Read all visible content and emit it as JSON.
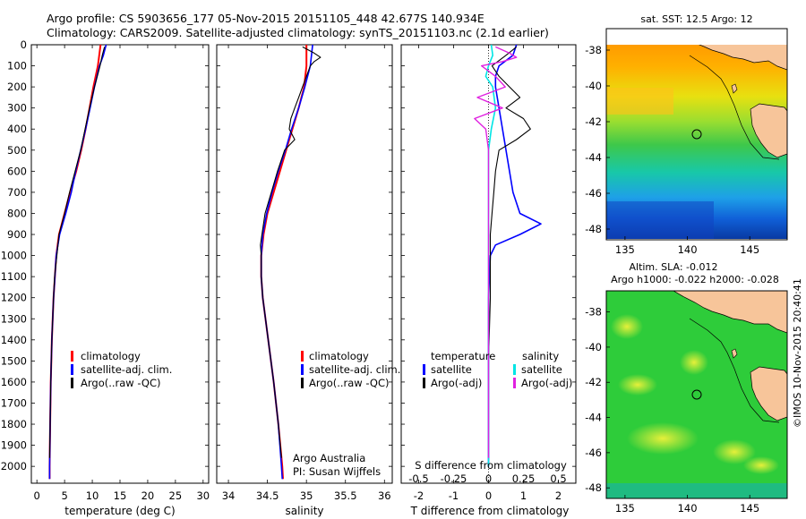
{
  "title_line1": "Argo profile: CS 5903656_177 05-Nov-2015 20151105_448 42.677S 140.934E",
  "title_line2": "Climatology: CARS2009. Satellite-adjusted climatology: synTS_20151103.nc (2.1d earlier)",
  "colors": {
    "clim": "#ff0000",
    "sat": "#0000ff",
    "argo": "#000000",
    "sat_s": "#00e5e5",
    "argo_s": "#e020e0",
    "land": "#f7c59a"
  },
  "chart_data": [
    {
      "type": "line",
      "id": "temperature",
      "xlabel": "temperature (deg C)",
      "xlim": [
        -1,
        31
      ],
      "ylim": [
        2080,
        0
      ],
      "x_ticks": [
        0,
        5,
        10,
        15,
        20,
        25,
        30
      ],
      "y_ticks": [
        0,
        100,
        200,
        300,
        400,
        500,
        600,
        700,
        800,
        900,
        1000,
        1100,
        1200,
        1300,
        1400,
        1500,
        1600,
        1700,
        1800,
        1900,
        2000
      ],
      "legend": [
        "climatology",
        "satellite-adj. clim.",
        "Argo(..raw -QC)"
      ],
      "series": [
        {
          "name": "climatology",
          "depth": [
            0,
            100,
            200,
            300,
            400,
            500,
            600,
            700,
            800,
            900,
            1000,
            1200,
            1400,
            1600,
            1800,
            2000,
            2060
          ],
          "values": [
            11.5,
            11.0,
            10.2,
            9.5,
            8.8,
            8.0,
            7.1,
            6.0,
            5.0,
            4.0,
            3.5,
            3.0,
            2.7,
            2.5,
            2.4,
            2.3,
            2.3
          ]
        },
        {
          "name": "satellite-adj. clim.",
          "depth": [
            0,
            50,
            100,
            200,
            300,
            400,
            500,
            600,
            700,
            800,
            900,
            1000,
            1200,
            1400,
            1600,
            1800,
            2000,
            2060
          ],
          "values": [
            12.5,
            12.0,
            11.3,
            10.4,
            9.6,
            8.8,
            7.9,
            7.0,
            6.2,
            5.2,
            4.1,
            3.5,
            3.0,
            2.7,
            2.5,
            2.4,
            2.3,
            2.3
          ]
        },
        {
          "name": "Argo(..raw -QC)",
          "depth": [
            10,
            50,
            100,
            150,
            200,
            300,
            400,
            500,
            600,
            700,
            800,
            900,
            1000,
            1100,
            1200,
            1400,
            1600,
            1800,
            1960
          ],
          "values": [
            12.2,
            11.8,
            11.4,
            10.9,
            10.4,
            9.5,
            8.7,
            7.9,
            6.9,
            5.9,
            5.0,
            4.0,
            3.6,
            3.2,
            3.0,
            2.7,
            2.5,
            2.4,
            2.3
          ]
        }
      ]
    },
    {
      "type": "line",
      "id": "salinity",
      "xlabel": "salinity",
      "xlim": [
        33.85,
        36.1
      ],
      "ylim": [
        2080,
        0
      ],
      "x_ticks": [
        34,
        34.5,
        35,
        35.5,
        36
      ],
      "legend": [
        "climatology",
        "satellite-adj. clim.",
        "Argo(..raw -QC)"
      ],
      "annotation": [
        "Argo Australia",
        "PI: Susan Wijffels"
      ],
      "series": [
        {
          "name": "climatology",
          "depth": [
            0,
            100,
            200,
            300,
            400,
            500,
            600,
            700,
            800,
            900,
            1000,
            1100,
            1200,
            1400,
            1600,
            1800,
            2000,
            2060
          ],
          "values": [
            35.0,
            35.0,
            34.97,
            34.9,
            34.82,
            34.74,
            34.66,
            34.58,
            34.5,
            34.45,
            34.42,
            34.42,
            34.44,
            34.51,
            34.58,
            34.64,
            34.69,
            34.7
          ]
        },
        {
          "name": "satellite-adj. clim.",
          "depth": [
            0,
            100,
            200,
            300,
            400,
            500,
            600,
            700,
            800,
            900,
            1000,
            1100,
            1200,
            1400,
            1600,
            1800,
            2000,
            2060
          ],
          "values": [
            35.08,
            35.05,
            34.98,
            34.9,
            34.81,
            34.73,
            34.64,
            34.56,
            34.49,
            34.44,
            34.42,
            34.42,
            34.44,
            34.51,
            34.58,
            34.64,
            34.68,
            34.69
          ]
        },
        {
          "name": "Argo(..raw -QC)",
          "depth": [
            10,
            40,
            60,
            80,
            100,
            150,
            200,
            250,
            300,
            350,
            400,
            450,
            500,
            600,
            700,
            800,
            900,
            950,
            1000,
            1100,
            1200,
            1400,
            1600,
            1800,
            1960
          ],
          "values": [
            34.95,
            35.1,
            35.18,
            35.1,
            35.05,
            35.0,
            34.95,
            34.9,
            34.85,
            34.8,
            34.78,
            34.85,
            34.72,
            34.63,
            34.55,
            34.47,
            34.43,
            34.41,
            34.42,
            34.42,
            34.44,
            34.51,
            34.58,
            34.64,
            34.68
          ]
        }
      ]
    },
    {
      "type": "line",
      "id": "difference",
      "xlabel": "T difference from climatology",
      "x2label": "S difference from climatology",
      "xlim": [
        -2.5,
        2.5
      ],
      "ylim": [
        2080,
        0
      ],
      "x_ticks": [
        -2,
        -1,
        0,
        1,
        2
      ],
      "x2_ticks": [
        "-0.5",
        "-0.25",
        "0",
        "0.25",
        "0.5"
      ],
      "legend_headers": [
        "temperature",
        "salinity"
      ],
      "legend": [
        "satellite",
        "Argo(-adj)",
        "satellite",
        "Argo(-adj)"
      ],
      "series": [
        {
          "name": "T satellite",
          "depth": [
            0,
            50,
            100,
            150,
            200,
            300,
            400,
            500,
            600,
            700,
            800,
            850,
            900,
            950,
            1000,
            1200,
            1600,
            2000
          ],
          "values": [
            0.8,
            0.7,
            0.3,
            0.2,
            0.2,
            0.3,
            0.4,
            0.5,
            0.6,
            0.7,
            0.9,
            1.5,
            0.9,
            0.2,
            0.05,
            0.0,
            0.0,
            0.0
          ]
        },
        {
          "name": "T Argo(-adj)",
          "depth": [
            10,
            50,
            100,
            150,
            200,
            250,
            300,
            350,
            400,
            450,
            500,
            600,
            700,
            800,
            900,
            1000,
            1200,
            1500,
            1800,
            1960
          ],
          "values": [
            0.8,
            0.5,
            0.1,
            0.3,
            0.6,
            0.9,
            0.5,
            1.0,
            1.2,
            0.8,
            0.3,
            0.2,
            0.15,
            0.1,
            0.05,
            0.05,
            0.05,
            0.0,
            0.0,
            0.0
          ]
        },
        {
          "name": "S satellite",
          "depth": [
            0,
            50,
            100,
            150,
            200,
            300,
            400,
            500,
            600,
            800,
            1000,
            1400,
            1800,
            2000
          ],
          "values": [
            0.02,
            0.03,
            0.0,
            -0.02,
            0.03,
            0.05,
            0.02,
            0.0,
            0.0,
            0.0,
            0.0,
            0.0,
            0.0,
            0.0
          ]
        },
        {
          "name": "S Argo(-adj)",
          "depth": [
            10,
            40,
            60,
            80,
            100,
            150,
            200,
            250,
            300,
            350,
            400,
            500,
            600,
            800,
            1000,
            1400,
            1800,
            1960
          ],
          "values": [
            0.05,
            0.15,
            0.2,
            0.1,
            -0.05,
            0.05,
            0.12,
            -0.08,
            0.1,
            -0.1,
            -0.02,
            0.0,
            0.0,
            0.0,
            0.0,
            0.0,
            0.0,
            0.0
          ]
        }
      ]
    }
  ],
  "map_sst": {
    "title": "sat. SST: 12.5 Argo: 12",
    "x_ticks": [
      135,
      140,
      145
    ],
    "y_ticks": [
      -38,
      -40,
      -42,
      -44,
      -46,
      -48
    ],
    "xlim": [
      133.5,
      148
    ],
    "ylim": [
      -48.6,
      -36.8
    ],
    "marker": {
      "lon": 140.934,
      "lat": -42.677
    }
  },
  "map_sla": {
    "title1": "Altim. SLA: -0.012",
    "title2": "Argo h1000: -0.022 h2000: -0.028",
    "x_ticks": [
      135,
      140,
      145
    ],
    "y_ticks": [
      -38,
      -40,
      -42,
      -44,
      -46,
      -48
    ],
    "xlim": [
      133.5,
      148
    ],
    "ylim": [
      -48.6,
      -36.8
    ],
    "marker": {
      "lon": 140.934,
      "lat": -42.677
    }
  },
  "stamp": "©IMOS 10-Nov-2015 20:40:41"
}
